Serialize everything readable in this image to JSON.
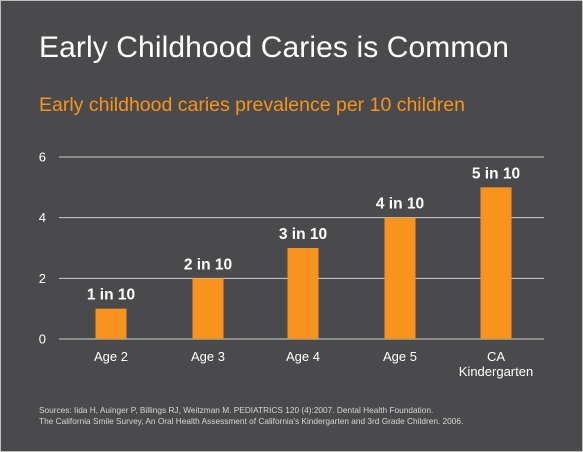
{
  "colors": {
    "background": "#4a4a4c",
    "title": "#ffffff",
    "subtitle": "#f7941d",
    "bar": "#f7941d",
    "gridline": "#d0d0d0",
    "axis_text": "#ffffff",
    "source_text": "#d6d6d6"
  },
  "chart_data": {
    "type": "bar",
    "title": "Early Childhood Caries is Common",
    "subtitle": "Early childhood caries prevalence per 10 children",
    "xlabel": "",
    "ylabel": "",
    "categories": [
      [
        "Age 2"
      ],
      [
        "Age 3"
      ],
      [
        "Age 4"
      ],
      [
        "Age 5"
      ],
      [
        "CA",
        "Kindergarten"
      ]
    ],
    "values": [
      1,
      2,
      3,
      4,
      5
    ],
    "data_labels": [
      "1 in 10",
      "2 in 10",
      "3 in 10",
      "4 in 10",
      "5 in 10"
    ],
    "ylim": [
      0,
      6
    ],
    "yticks": [
      0,
      2,
      4,
      6
    ],
    "grid": true,
    "legend": "none"
  },
  "source": {
    "line1": "Sources: Iida H, Auinger P, Billings RJ, Weitzman M. PEDIATRICS 120 (4):2007. Dental Health Foundation.",
    "line2": "The California Smile Survey, An Oral Health Assessment of California's Kindergarten and 3rd Grade Children. 2006."
  }
}
